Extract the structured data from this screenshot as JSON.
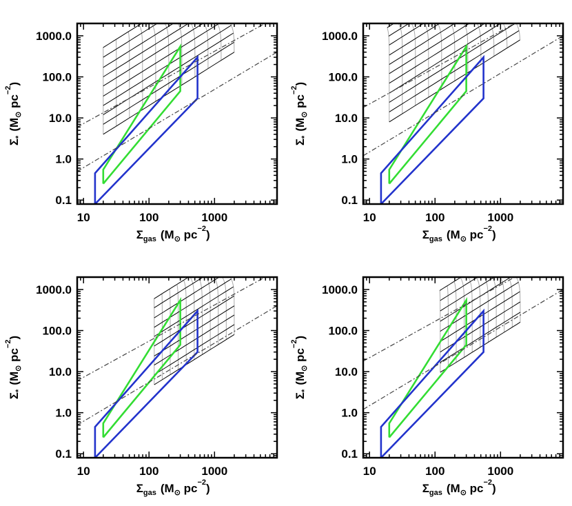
{
  "figure": {
    "background": "#ffffff",
    "colors": {
      "green_region": "#33dd33",
      "blue_region": "#2233cc",
      "grid_gray": "#aaaaaa",
      "grid_black": "#000000",
      "reference_line": "#444444",
      "frame": "#000000"
    }
  },
  "chart_data": [
    {
      "panel": "top-left",
      "type": "line",
      "xscale": "log",
      "yscale": "log",
      "xlim": [
        8,
        9000
      ],
      "ylim": [
        0.08,
        2000
      ],
      "xticks": [
        10,
        100,
        1000
      ],
      "xtick_labels": [
        "10",
        "100",
        "1000"
      ],
      "yticks": [
        0.1,
        1,
        10,
        100,
        1000
      ],
      "ytick_labels": [
        "0.1",
        "1.0",
        "10.0",
        "100.0",
        "1000.0"
      ],
      "xlabel_main": "Σ",
      "xlabel_sub": "gas",
      "xlabel_units": "(M",
      "xlabel_odot": "⊙",
      "xlabel_rest": " pc",
      "xlabel_exp": "−2",
      "xlabel_close": ")",
      "ylabel_main": "Σ",
      "ylabel_sub": "*",
      "ylabel_units": "(M",
      "ylabel_odot": "⊙",
      "ylabel_rest": " pc",
      "ylabel_exp": "−2",
      "ylabel_close": ")",
      "grid_model": {
        "gas_min": 20,
        "gas_max": 2000,
        "kappas": [
          0.2,
          0.35,
          0.6,
          1,
          1.7,
          3,
          5,
          8.5,
          15,
          26
        ]
      },
      "series": [
        {
          "name": "green",
          "x": [
            20,
            20,
            300,
            300,
            20
          ],
          "y": [
            0.25,
            0.55,
            550,
            45,
            0.25
          ]
        },
        {
          "name": "blue",
          "x": [
            15,
            15,
            550,
            550,
            15
          ],
          "y": [
            0.08,
            0.45,
            300,
            30,
            0.08
          ]
        },
        {
          "name": "dash-dot upper",
          "x": [
            8,
            9000
          ],
          "y": [
            6,
            2900
          ]
        },
        {
          "name": "dash-dot lower",
          "x": [
            8,
            9000
          ],
          "y": [
            0.5,
            400
          ]
        }
      ]
    },
    {
      "panel": "top-right",
      "type": "line",
      "xscale": "log",
      "yscale": "log",
      "xlim": [
        8,
        9000
      ],
      "ylim": [
        0.08,
        2000
      ],
      "xticks": [
        10,
        100,
        1000
      ],
      "xtick_labels": [
        "10",
        "100",
        "1000"
      ],
      "yticks": [
        0.1,
        1,
        10,
        100,
        1000
      ],
      "ytick_labels": [
        "0.1",
        "1.0",
        "10.0",
        "100.0",
        "1000.0"
      ],
      "xlabel_main": "Σ",
      "xlabel_sub": "gas",
      "xlabel_units": "(M",
      "xlabel_odot": "⊙",
      "xlabel_rest": " pc",
      "xlabel_exp": "−2",
      "xlabel_close": ")",
      "ylabel_main": "Σ",
      "ylabel_sub": "*",
      "ylabel_units": "(M",
      "ylabel_odot": "⊙",
      "ylabel_rest": " pc",
      "ylabel_exp": "−2",
      "ylabel_close": ")",
      "grid_model": {
        "gas_min": 20,
        "gas_max": 2000,
        "kappas": [
          0.4,
          0.7,
          1.2,
          2,
          3.5,
          6,
          10,
          17,
          30,
          50,
          85
        ]
      },
      "series": [
        {
          "name": "green",
          "x": [
            20,
            20,
            300,
            300,
            20
          ],
          "y": [
            0.25,
            0.55,
            550,
            45,
            0.25
          ]
        },
        {
          "name": "blue",
          "x": [
            15,
            15,
            550,
            550,
            15
          ],
          "y": [
            0.08,
            0.45,
            300,
            30,
            0.08
          ]
        },
        {
          "name": "dash-dot upper",
          "x": [
            8,
            9000
          ],
          "y": [
            18,
            9000
          ]
        },
        {
          "name": "dash-dot lower",
          "x": [
            8,
            9000
          ],
          "y": [
            1.2,
            1000
          ]
        }
      ]
    },
    {
      "panel": "bottom-left",
      "type": "line",
      "xscale": "log",
      "yscale": "log",
      "xlim": [
        8,
        9000
      ],
      "ylim": [
        0.08,
        2000
      ],
      "xticks": [
        10,
        100,
        1000
      ],
      "xtick_labels": [
        "10",
        "100",
        "1000"
      ],
      "yticks": [
        0.1,
        1,
        10,
        100,
        1000
      ],
      "ytick_labels": [
        "0.1",
        "1.0",
        "10.0",
        "100.0",
        "1000.0"
      ],
      "xlabel_main": "Σ",
      "xlabel_sub": "gas",
      "xlabel_units": "(M",
      "xlabel_odot": "⊙",
      "xlabel_rest": " pc",
      "xlabel_exp": "−2",
      "xlabel_close": ")",
      "ylabel_main": "Σ",
      "ylabel_sub": "*",
      "ylabel_units": "(M",
      "ylabel_odot": "⊙",
      "ylabel_rest": " pc",
      "ylabel_exp": "−2",
      "ylabel_close": ")",
      "grid_model": {
        "gas_min": 120,
        "gas_max": 2000,
        "kappas": [
          0.04,
          0.07,
          0.12,
          0.2,
          0.35,
          0.6,
          1,
          1.7,
          3,
          5
        ]
      },
      "series": [
        {
          "name": "green",
          "x": [
            20,
            20,
            300,
            300,
            20
          ],
          "y": [
            0.25,
            0.55,
            550,
            45,
            0.25
          ]
        },
        {
          "name": "blue",
          "x": [
            15,
            15,
            550,
            550,
            15
          ],
          "y": [
            0.08,
            0.45,
            300,
            30,
            0.08
          ]
        },
        {
          "name": "dash-dot upper",
          "x": [
            8,
            9000
          ],
          "y": [
            6,
            2900
          ]
        },
        {
          "name": "dash-dot lower",
          "x": [
            8,
            9000
          ],
          "y": [
            0.5,
            400
          ]
        }
      ]
    },
    {
      "panel": "bottom-right",
      "type": "line",
      "xscale": "log",
      "yscale": "log",
      "xlim": [
        8,
        9000
      ],
      "ylim": [
        0.08,
        2000
      ],
      "xticks": [
        10,
        100,
        1000
      ],
      "xtick_labels": [
        "10",
        "100",
        "1000"
      ],
      "yticks": [
        0.1,
        1,
        10,
        100,
        1000
      ],
      "ytick_labels": [
        "0.1",
        "1.0",
        "10.0",
        "100.0",
        "1000.0"
      ],
      "xlabel_main": "Σ",
      "xlabel_sub": "gas",
      "xlabel_units": "(M",
      "xlabel_odot": "⊙",
      "xlabel_rest": " pc",
      "xlabel_exp": "−2",
      "xlabel_close": ")",
      "ylabel_main": "Σ",
      "ylabel_sub": "*",
      "ylabel_units": "(M",
      "ylabel_odot": "⊙",
      "ylabel_rest": " pc",
      "ylabel_exp": "−2",
      "ylabel_close": ")",
      "grid_model": {
        "gas_min": 120,
        "gas_max": 2000,
        "kappas": [
          0.08,
          0.14,
          0.25,
          0.45,
          0.8,
          1.4,
          2.5,
          4.5,
          8
        ]
      },
      "series": [
        {
          "name": "green",
          "x": [
            20,
            20,
            300,
            300,
            20
          ],
          "y": [
            0.25,
            0.55,
            550,
            45,
            0.25
          ]
        },
        {
          "name": "blue",
          "x": [
            15,
            15,
            550,
            550,
            15
          ],
          "y": [
            0.08,
            0.45,
            300,
            30,
            0.08
          ]
        },
        {
          "name": "dash-dot upper",
          "x": [
            8,
            9000
          ],
          "y": [
            18,
            9000
          ]
        },
        {
          "name": "dash-dot lower",
          "x": [
            8,
            9000
          ],
          "y": [
            1.2,
            1000
          ]
        }
      ]
    }
  ]
}
